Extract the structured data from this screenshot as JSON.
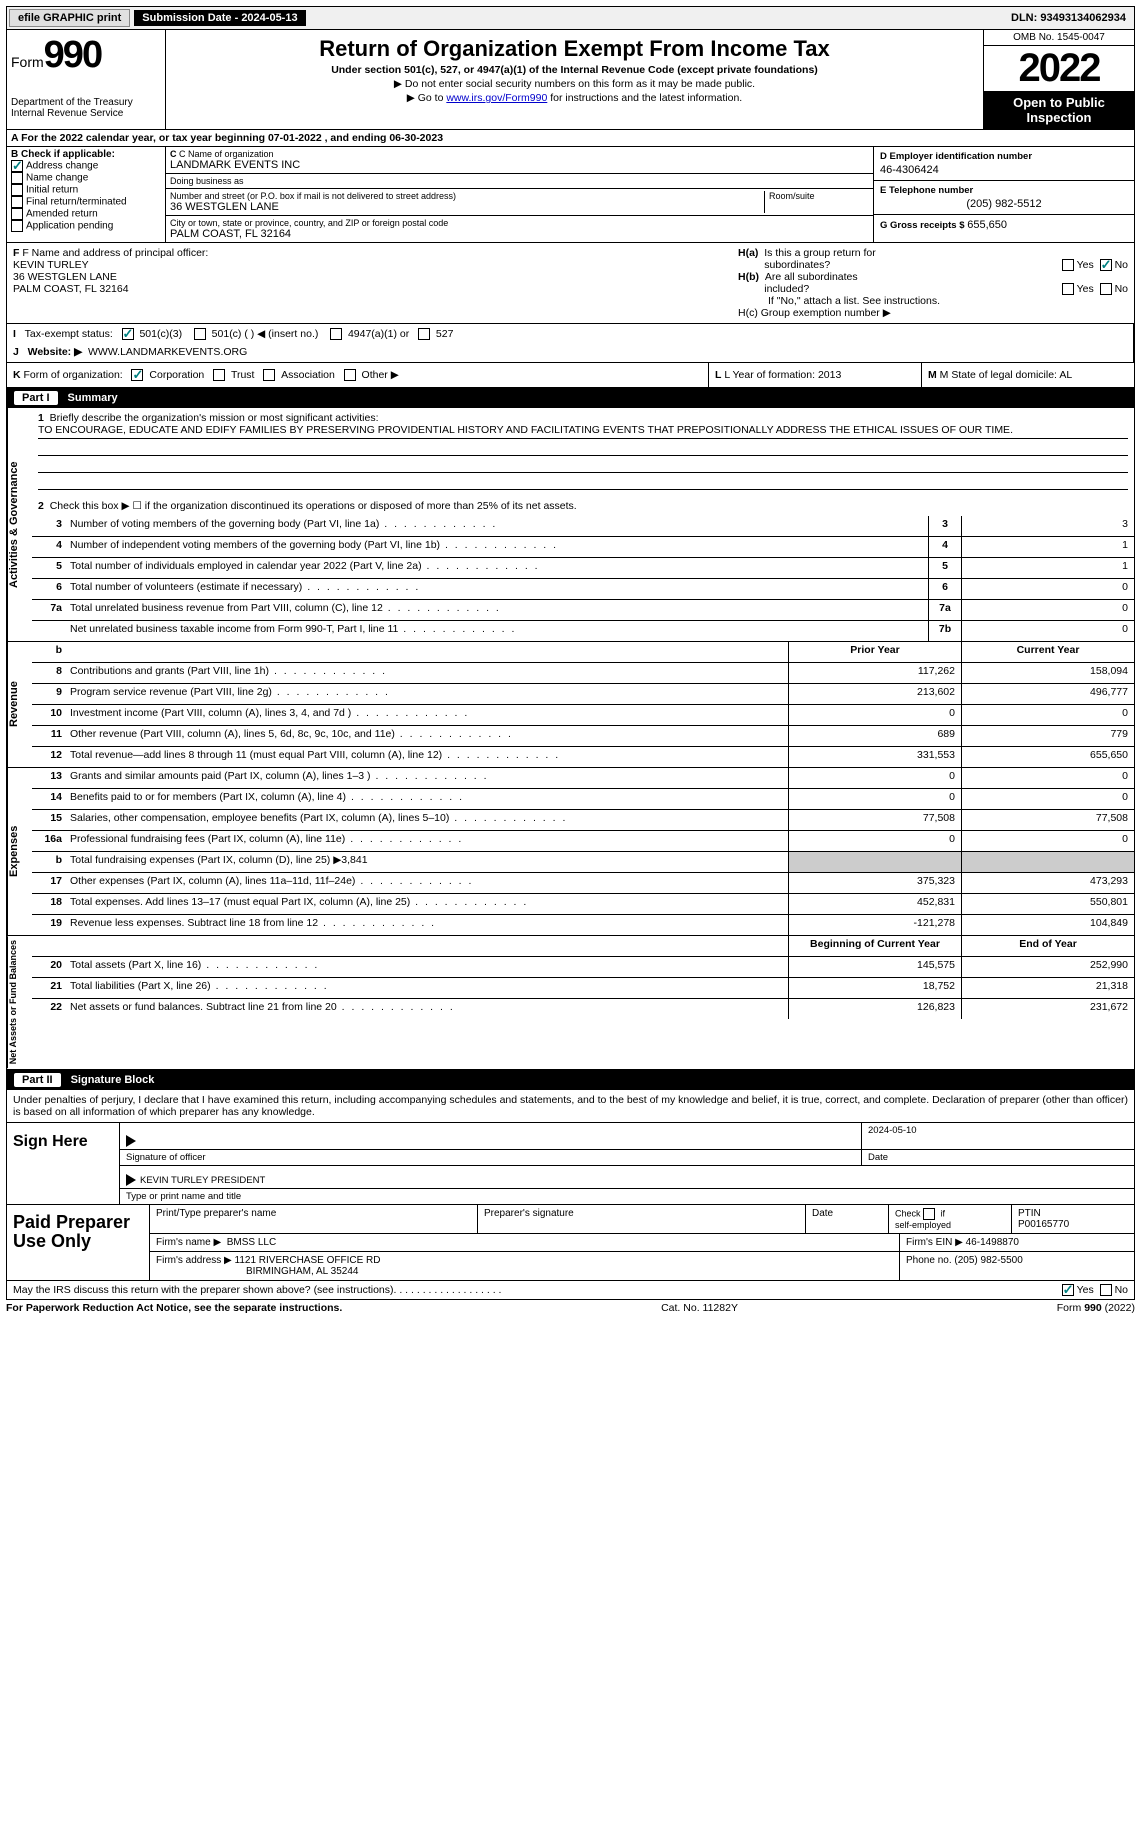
{
  "topbar": {
    "efile": "efile GRAPHIC print",
    "submission_label": "Submission Date - 2024-05-13",
    "dln": "DLN: 93493134062934"
  },
  "header": {
    "form_label": "Form",
    "form_num": "990",
    "dept": "Department of the Treasury",
    "irs": "Internal Revenue Service",
    "title": "Return of Organization Exempt From Income Tax",
    "sub": "Under section 501(c), 527, or 4947(a)(1) of the Internal Revenue Code (except private foundations)",
    "line1": "▶ Do not enter social security numbers on this form as it may be made public.",
    "line2_pre": "▶ Go to ",
    "line2_link": "www.irs.gov/Form990",
    "line2_post": " for instructions and the latest information.",
    "omb": "OMB No. 1545-0047",
    "year": "2022",
    "open": "Open to Public Inspection"
  },
  "calendar": "A  For the 2022 calendar year, or tax year beginning 07-01-2022    , and ending 06-30-2023",
  "box_b": {
    "title": "B Check if applicable:",
    "items": [
      "Address change",
      "Name change",
      "Initial return",
      "Final return/terminated",
      "Amended return",
      "Application pending"
    ],
    "checked_index": 0
  },
  "box_c": {
    "name_label": "C Name of organization",
    "name": "LANDMARK EVENTS INC",
    "dba_label": "Doing business as",
    "dba": "",
    "street_label": "Number and street (or P.O. box if mail is not delivered to street address)",
    "street": "36 WESTGLEN LANE",
    "room_label": "Room/suite",
    "room": "",
    "city_label": "City or town, state or province, country, and ZIP or foreign postal code",
    "city": "PALM COAST, FL  32164"
  },
  "box_d": {
    "ein_label": "D Employer identification number",
    "ein": "46-4306424",
    "phone_label": "E Telephone number",
    "phone": "(205) 982-5512",
    "gross_label": "G Gross receipts $",
    "gross": "655,650"
  },
  "box_f": {
    "label": "F Name and address of principal officer:",
    "name": "KEVIN TURLEY",
    "addr1": "36 WESTGLEN LANE",
    "addr2": "PALM COAST, FL  32164"
  },
  "box_h": {
    "a_label": "H(a)  Is this a group return for subordinates?",
    "a_yes": "Yes",
    "a_no": "No",
    "b_label": "H(b)  Are all subordinates included?",
    "b_note": "If \"No,\" attach a list. See instructions.",
    "c_label": "H(c)  Group exemption number ▶"
  },
  "box_i": {
    "label": "I   Tax-exempt status:",
    "opt1": "501(c)(3)",
    "opt2": "501(c) (  ) ◀ (insert no.)",
    "opt3": "4947(a)(1) or",
    "opt4": "527"
  },
  "box_j": {
    "label": "J   Website: ▶",
    "val": "WWW.LANDMARKEVENTS.ORG"
  },
  "box_k": {
    "label": "K Form of organization:",
    "opts": [
      "Corporation",
      "Trust",
      "Association",
      "Other ▶"
    ]
  },
  "box_l": {
    "label": "L Year of formation:",
    "val": "2013"
  },
  "box_m": {
    "label": "M State of legal domicile:",
    "val": "AL"
  },
  "part1": {
    "num": "Part I",
    "title": "Summary"
  },
  "mission": {
    "label": "1   Briefly describe the organization's mission or most significant activities:",
    "text": "TO ENCOURAGE, EDUCATE AND EDIFY FAMILIES BY PRESERVING PROVIDENTIAL HISTORY AND FACILITATING EVENTS THAT PREPOSITIONALLY ADDRESS THE ETHICAL ISSUES OF OUR TIME."
  },
  "line2": "Check this box ▶ ☐ if the organization discontinued its operations or disposed of more than 25% of its net assets.",
  "gov_lines": [
    {
      "n": "3",
      "t": "Number of voting members of the governing body (Part VI, line 1a)",
      "box": "3",
      "v": "3"
    },
    {
      "n": "4",
      "t": "Number of independent voting members of the governing body (Part VI, line 1b)",
      "box": "4",
      "v": "1"
    },
    {
      "n": "5",
      "t": "Total number of individuals employed in calendar year 2022 (Part V, line 2a)",
      "box": "5",
      "v": "1"
    },
    {
      "n": "6",
      "t": "Total number of volunteers (estimate if necessary)",
      "box": "6",
      "v": "0"
    },
    {
      "n": "7a",
      "t": "Total unrelated business revenue from Part VIII, column (C), line 12",
      "box": "7a",
      "v": "0"
    },
    {
      "n": "",
      "t": "Net unrelated business taxable income from Form 990-T, Part I, line 11",
      "box": "7b",
      "v": "0"
    }
  ],
  "col_headers": {
    "prior": "Prior Year",
    "current": "Current Year",
    "begin": "Beginning of Current Year",
    "end": "End of Year"
  },
  "revenue": [
    {
      "n": "8",
      "t": "Contributions and grants (Part VIII, line 1h)",
      "p": "117,262",
      "c": "158,094"
    },
    {
      "n": "9",
      "t": "Program service revenue (Part VIII, line 2g)",
      "p": "213,602",
      "c": "496,777"
    },
    {
      "n": "10",
      "t": "Investment income (Part VIII, column (A), lines 3, 4, and 7d )",
      "p": "0",
      "c": "0"
    },
    {
      "n": "11",
      "t": "Other revenue (Part VIII, column (A), lines 5, 6d, 8c, 9c, 10c, and 11e)",
      "p": "689",
      "c": "779"
    },
    {
      "n": "12",
      "t": "Total revenue—add lines 8 through 11 (must equal Part VIII, column (A), line 12)",
      "p": "331,553",
      "c": "655,650"
    }
  ],
  "expenses": [
    {
      "n": "13",
      "t": "Grants and similar amounts paid (Part IX, column (A), lines 1–3 )",
      "p": "0",
      "c": "0"
    },
    {
      "n": "14",
      "t": "Benefits paid to or for members (Part IX, column (A), line 4)",
      "p": "0",
      "c": "0"
    },
    {
      "n": "15",
      "t": "Salaries, other compensation, employee benefits (Part IX, column (A), lines 5–10)",
      "p": "77,508",
      "c": "77,508"
    },
    {
      "n": "16a",
      "t": "Professional fundraising fees (Part IX, column (A), line 11e)",
      "p": "0",
      "c": "0"
    },
    {
      "n": "b",
      "t": "Total fundraising expenses (Part IX, column (D), line 25) ▶3,841",
      "p": "",
      "c": "",
      "shade": true
    },
    {
      "n": "17",
      "t": "Other expenses (Part IX, column (A), lines 11a–11d, 11f–24e)",
      "p": "375,323",
      "c": "473,293"
    },
    {
      "n": "18",
      "t": "Total expenses. Add lines 13–17 (must equal Part IX, column (A), line 25)",
      "p": "452,831",
      "c": "550,801"
    },
    {
      "n": "19",
      "t": "Revenue less expenses. Subtract line 18 from line 12",
      "p": "-121,278",
      "c": "104,849"
    }
  ],
  "netassets": [
    {
      "n": "20",
      "t": "Total assets (Part X, line 16)",
      "p": "145,575",
      "c": "252,990"
    },
    {
      "n": "21",
      "t": "Total liabilities (Part X, line 26)",
      "p": "18,752",
      "c": "21,318"
    },
    {
      "n": "22",
      "t": "Net assets or fund balances. Subtract line 21 from line 20",
      "p": "126,823",
      "c": "231,672"
    }
  ],
  "part2": {
    "num": "Part II",
    "title": "Signature Block"
  },
  "perjury": "Under penalties of perjury, I declare that I have examined this return, including accompanying schedules and statements, and to the best of my knowledge and belief, it is true, correct, and complete. Declaration of preparer (other than officer) is based on all information of which preparer has any knowledge.",
  "sign": {
    "here": "Sign Here",
    "sig_label": "Signature of officer",
    "date": "2024-05-10",
    "date_label": "Date",
    "name": "KEVIN TURLEY PRESIDENT",
    "name_label": "Type or print name and title"
  },
  "paid": {
    "title": "Paid Preparer Use Only",
    "h1": "Print/Type preparer's name",
    "h2": "Preparer's signature",
    "h3": "Date",
    "h4_label": "Check ☐ if self-employed",
    "h5_label": "PTIN",
    "ptin": "P00165770",
    "firm_label": "Firm's name    ▶",
    "firm": "BMSS LLC",
    "ein_label": "Firm's EIN ▶",
    "ein": "46-1498870",
    "addr_label": "Firm's address ▶",
    "addr1": "1121 RIVERCHASE OFFICE RD",
    "addr2": "BIRMINGHAM, AL  35244",
    "phone_label": "Phone no.",
    "phone": "(205) 982-5500"
  },
  "discuss": {
    "text": "May the IRS discuss this return with the preparer shown above? (see instructions)",
    "yes": "Yes",
    "no": "No"
  },
  "footer": {
    "left": "For Paperwork Reduction Act Notice, see the separate instructions.",
    "center": "Cat. No. 11282Y",
    "right": "Form 990 (2022)"
  },
  "vert": {
    "gov": "Activities & Governance",
    "rev": "Revenue",
    "exp": "Expenses",
    "net": "Net Assets or Fund Balances"
  }
}
